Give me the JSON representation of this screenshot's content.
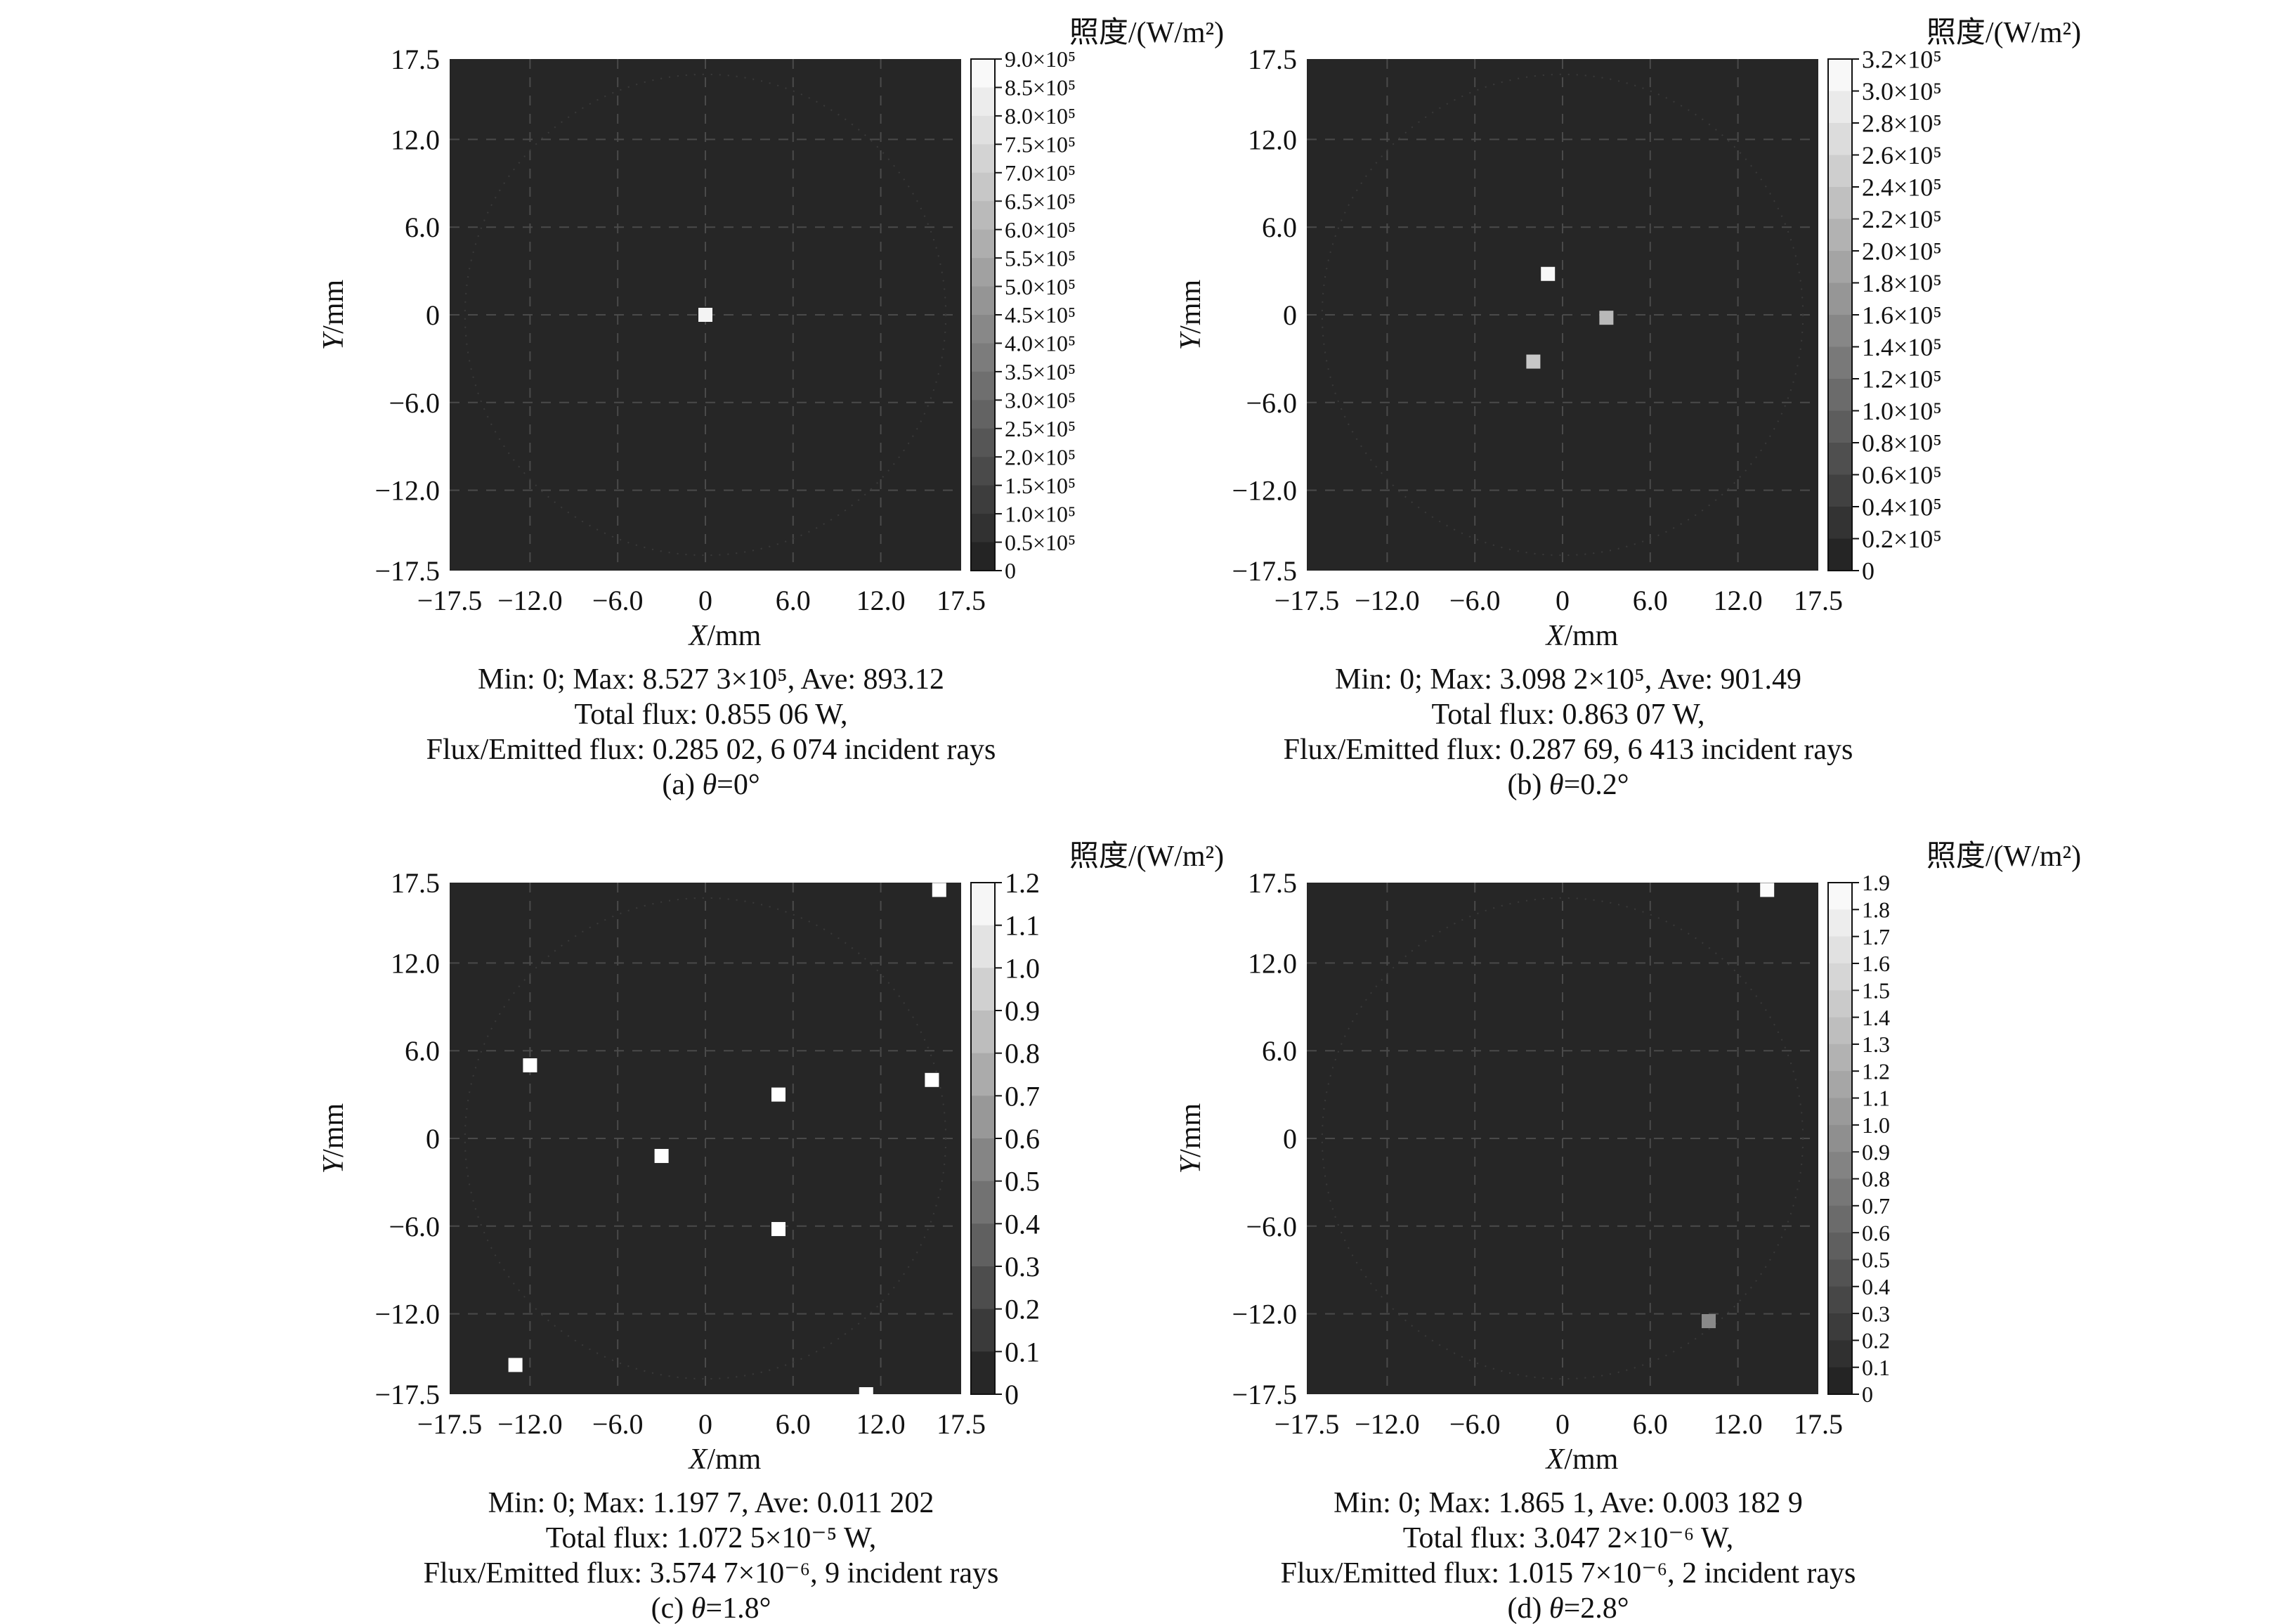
{
  "axis_units": {
    "x": "X/mm",
    "y": "Y/mm",
    "colorbar_unit": "照度/(W/m²)"
  },
  "chart_data": [
    {
      "type": "heatmap",
      "caption": "(a) θ=0°",
      "stats": [
        "Min: 0; Max: 8.527 3×10⁵, Ave: 893.12",
        "Total flux: 0.855 06 W,",
        "Flux/Emitted flux: 0.285 02, 6 074 incident rays"
      ],
      "xlabel": "X/mm",
      "ylabel": "Y/mm",
      "xlim": [
        -17.5,
        17.5
      ],
      "ylim": [
        -17.5,
        17.5
      ],
      "xticks": [
        "−17.5",
        "−12.0",
        "−6.0",
        "0",
        "6.0",
        "12.0",
        "17.5"
      ],
      "yticks": [
        "17.5",
        "12.0",
        "6.0",
        "0",
        "−6.0",
        "−12.0",
        "−17.5"
      ],
      "grid": true,
      "colorbar": {
        "label": "照度/(W/m²)",
        "min": 0,
        "max": 900000,
        "ticks": [
          "9.0×10⁵",
          "8.5×10⁵",
          "8.0×10⁵",
          "7.5×10⁵",
          "7.0×10⁵",
          "6.5×10⁵",
          "6.0×10⁵",
          "5.5×10⁵",
          "5.0×10⁵",
          "4.5×10⁵",
          "4.0×10⁵",
          "3.5×10⁵",
          "3.0×10⁵",
          "2.5×10⁵",
          "2.0×10⁵",
          "1.5×10⁵",
          "1.0×10⁵",
          "0.5×10⁵",
          "0"
        ]
      },
      "spots": [
        {
          "x": 0,
          "y": 0,
          "value": 852730
        }
      ]
    },
    {
      "type": "heatmap",
      "caption": "(b) θ=0.2°",
      "stats": [
        "Min: 0; Max: 3.098 2×10⁵, Ave: 901.49",
        "Total flux: 0.863 07 W,",
        "Flux/Emitted flux: 0.287 69, 6 413 incident rays"
      ],
      "xlabel": "X/mm",
      "ylabel": "Y/mm",
      "xlim": [
        -17.5,
        17.5
      ],
      "ylim": [
        -17.5,
        17.5
      ],
      "xticks": [
        "−17.5",
        "−12.0",
        "−6.0",
        "0",
        "6.0",
        "12.0",
        "17.5"
      ],
      "yticks": [
        "17.5",
        "12.0",
        "6.0",
        "0",
        "−6.0",
        "−12.0",
        "−17.5"
      ],
      "grid": true,
      "colorbar": {
        "label": "照度/(W/m²)",
        "min": 0,
        "max": 320000,
        "ticks": [
          "3.2×10⁵",
          "3.0×10⁵",
          "2.8×10⁵",
          "2.6×10⁵",
          "2.4×10⁵",
          "2.2×10⁵",
          "2.0×10⁵",
          "1.8×10⁵",
          "1.6×10⁵",
          "1.4×10⁵",
          "1.2×10⁵",
          "1.0×10⁵",
          "0.8×10⁵",
          "0.6×10⁵",
          "0.4×10⁵",
          "0.2×10⁵",
          "0"
        ]
      },
      "spots": [
        {
          "x": -1.0,
          "y": 2.8,
          "value": 309820
        },
        {
          "x": 3.0,
          "y": -0.2,
          "value": 220000
        },
        {
          "x": -2.0,
          "y": -3.2,
          "value": 240000
        }
      ]
    },
    {
      "type": "heatmap",
      "caption": "(c) θ=1.8°",
      "stats": [
        "Min: 0; Max: 1.197 7, Ave: 0.011 202",
        "Total flux: 1.072 5×10⁻⁵ W,",
        "Flux/Emitted flux: 3.574 7×10⁻⁶, 9 incident rays"
      ],
      "xlabel": "X/mm",
      "ylabel": "Y/mm",
      "xlim": [
        -17.5,
        17.5
      ],
      "ylim": [
        -17.5,
        17.5
      ],
      "xticks": [
        "−17.5",
        "−12.0",
        "−6.0",
        "0",
        "6.0",
        "12.0",
        "17.5"
      ],
      "yticks": [
        "17.5",
        "12.0",
        "6.0",
        "0",
        "−6.0",
        "−12.0",
        "−17.5"
      ],
      "grid": true,
      "colorbar": {
        "label": "照度/(W/m²)",
        "min": 0,
        "max": 1.2,
        "ticks": [
          "1.2",
          "1.1",
          "1.0",
          "0.9",
          "0.8",
          "0.7",
          "0.6",
          "0.5",
          "0.4",
          "0.3",
          "0.2",
          "0.1",
          "0"
        ]
      },
      "spots": [
        {
          "x": 16.0,
          "y": 17.0,
          "value": 1.1977
        },
        {
          "x": -12.0,
          "y": 5.0,
          "value": 1.1977
        },
        {
          "x": 5.0,
          "y": 3.0,
          "value": 1.1977
        },
        {
          "x": 15.5,
          "y": 4.0,
          "value": 1.1977
        },
        {
          "x": -3.0,
          "y": -1.2,
          "value": 1.1977
        },
        {
          "x": 5.0,
          "y": -6.2,
          "value": 1.1977
        },
        {
          "x": -13.0,
          "y": -15.5,
          "value": 1.1977
        },
        {
          "x": 11.0,
          "y": -17.5,
          "value": 1.1977
        }
      ]
    },
    {
      "type": "heatmap",
      "caption": "(d) θ=2.8°",
      "stats": [
        "Min: 0; Max: 1.865 1, Ave: 0.003 182 9",
        "Total flux: 3.047 2×10⁻⁶ W,",
        "Flux/Emitted flux: 1.015 7×10⁻⁶, 2 incident rays"
      ],
      "xlabel": "X/mm",
      "ylabel": "Y/mm",
      "xlim": [
        -17.5,
        17.5
      ],
      "ylim": [
        -17.5,
        17.5
      ],
      "xticks": [
        "−17.5",
        "−12.0",
        "−6.0",
        "0",
        "6.0",
        "12.0",
        "17.5"
      ],
      "yticks": [
        "17.5",
        "12.0",
        "6.0",
        "0",
        "−6.0",
        "−12.0",
        "−17.5"
      ],
      "grid": true,
      "colorbar": {
        "label": "照度/(W/m²)",
        "min": 0,
        "max": 1.9,
        "ticks": [
          "1.9",
          "1.8",
          "1.7",
          "1.6",
          "1.5",
          "1.4",
          "1.3",
          "1.2",
          "1.1",
          "1.0",
          "0.9",
          "0.8",
          "0.7",
          "0.6",
          "0.5",
          "0.4",
          "0.3",
          "0.2",
          "0.1",
          "0"
        ]
      },
      "spots": [
        {
          "x": 14.0,
          "y": 17.0,
          "value": 1.8651
        },
        {
          "x": 10.0,
          "y": -12.5,
          "value": 0.9
        }
      ]
    }
  ]
}
